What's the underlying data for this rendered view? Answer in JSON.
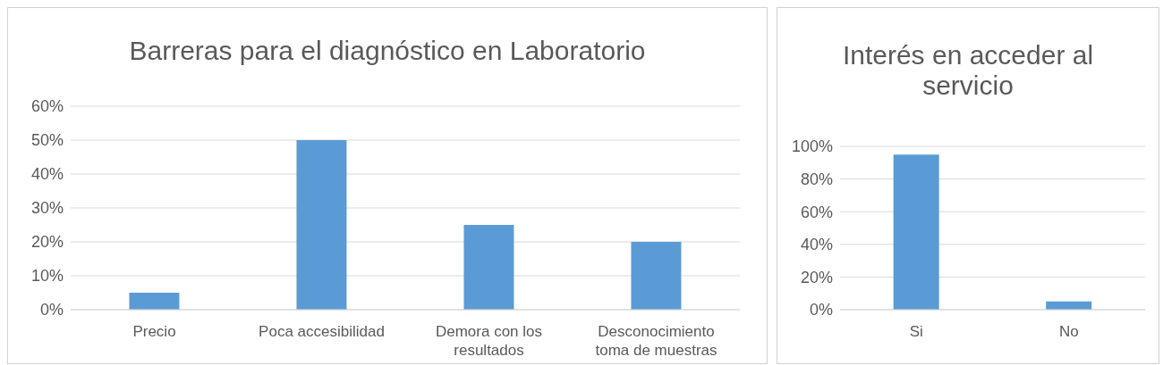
{
  "chart_data": [
    {
      "type": "bar",
      "title": "Barreras para el diagnóstico en Laboratorio",
      "categories": [
        "Precio",
        "Poca accesibilidad",
        "Demora con los resultados",
        "Desconocimiento toma de muestras"
      ],
      "values": [
        0.05,
        0.5,
        0.25,
        0.2
      ],
      "color": "#5b9bd5",
      "ylim": [
        0,
        0.6
      ],
      "yticks": [
        {
          "value": 0,
          "label": "0%"
        },
        {
          "value": 0.1,
          "label": "10%"
        },
        {
          "value": 0.2,
          "label": "20%"
        },
        {
          "value": 0.3,
          "label": "30%"
        },
        {
          "value": 0.4,
          "label": "40%"
        },
        {
          "value": 0.5,
          "label": "50%"
        },
        {
          "value": 0.6,
          "label": "60%"
        }
      ],
      "grid": "y"
    },
    {
      "type": "bar",
      "title": "Interés en acceder al servicio",
      "categories": [
        "Si",
        "No"
      ],
      "values": [
        0.95,
        0.05
      ],
      "color": "#5b9bd5",
      "ylim": [
        0,
        1
      ],
      "yticks": [
        {
          "value": 0,
          "label": "0%"
        },
        {
          "value": 0.2,
          "label": "20%"
        },
        {
          "value": 0.4,
          "label": "40%"
        },
        {
          "value": 0.6,
          "label": "60%"
        },
        {
          "value": 0.8,
          "label": "80%"
        },
        {
          "value": 1,
          "label": "100%"
        }
      ],
      "grid": "y"
    }
  ]
}
